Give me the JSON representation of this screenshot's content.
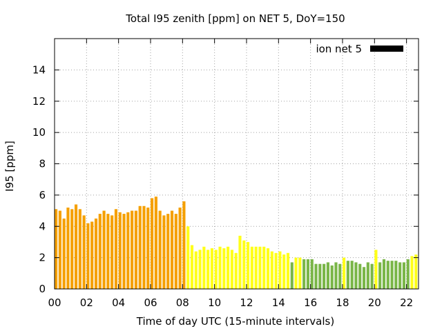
{
  "chart_data": {
    "type": "bar",
    "title": "Total I95 zenith [ppm] on NET 5, DoY=150",
    "xlabel": "Time of day UTC (15-minute intervals)",
    "ylabel": "I95 [ppm]",
    "xlim": [
      0,
      22.75
    ],
    "ylim": [
      0,
      16
    ],
    "grid": true,
    "x_ticks": [
      "00",
      "02",
      "04",
      "06",
      "08",
      "10",
      "12",
      "14",
      "16",
      "18",
      "20",
      "22"
    ],
    "y_ticks": [
      "0",
      "2",
      "4",
      "6",
      "8",
      "10",
      "12",
      "14"
    ],
    "legend": {
      "label": "ion net 5",
      "position": "top-right",
      "color": "#000000"
    },
    "colors": {
      "orange": "#f5a000",
      "yellow": "#ffff1a",
      "green": "#7ab648"
    },
    "bars": [
      {
        "x": 0.0,
        "value": 5.1,
        "color": "orange"
      },
      {
        "x": 0.25,
        "value": 5.0,
        "color": "orange"
      },
      {
        "x": 0.5,
        "value": 4.5,
        "color": "orange"
      },
      {
        "x": 0.75,
        "value": 5.2,
        "color": "orange"
      },
      {
        "x": 1.0,
        "value": 5.1,
        "color": "orange"
      },
      {
        "x": 1.25,
        "value": 5.4,
        "color": "orange"
      },
      {
        "x": 1.5,
        "value": 5.1,
        "color": "orange"
      },
      {
        "x": 1.75,
        "value": 4.7,
        "color": "orange"
      },
      {
        "x": 2.0,
        "value": 4.2,
        "color": "orange"
      },
      {
        "x": 2.25,
        "value": 4.3,
        "color": "orange"
      },
      {
        "x": 2.5,
        "value": 4.5,
        "color": "orange"
      },
      {
        "x": 2.75,
        "value": 4.8,
        "color": "orange"
      },
      {
        "x": 3.0,
        "value": 5.0,
        "color": "orange"
      },
      {
        "x": 3.25,
        "value": 4.8,
        "color": "orange"
      },
      {
        "x": 3.5,
        "value": 4.7,
        "color": "orange"
      },
      {
        "x": 3.75,
        "value": 5.1,
        "color": "orange"
      },
      {
        "x": 4.0,
        "value": 4.9,
        "color": "orange"
      },
      {
        "x": 4.25,
        "value": 4.8,
        "color": "orange"
      },
      {
        "x": 4.5,
        "value": 4.9,
        "color": "orange"
      },
      {
        "x": 4.75,
        "value": 5.0,
        "color": "orange"
      },
      {
        "x": 5.0,
        "value": 5.0,
        "color": "orange"
      },
      {
        "x": 5.25,
        "value": 5.3,
        "color": "orange"
      },
      {
        "x": 5.5,
        "value": 5.3,
        "color": "orange"
      },
      {
        "x": 5.75,
        "value": 5.2,
        "color": "orange"
      },
      {
        "x": 6.0,
        "value": 5.8,
        "color": "orange"
      },
      {
        "x": 6.25,
        "value": 5.9,
        "color": "orange"
      },
      {
        "x": 6.5,
        "value": 5.0,
        "color": "orange"
      },
      {
        "x": 6.75,
        "value": 4.7,
        "color": "orange"
      },
      {
        "x": 7.0,
        "value": 4.8,
        "color": "orange"
      },
      {
        "x": 7.25,
        "value": 5.0,
        "color": "orange"
      },
      {
        "x": 7.5,
        "value": 4.8,
        "color": "orange"
      },
      {
        "x": 7.75,
        "value": 5.2,
        "color": "orange"
      },
      {
        "x": 8.0,
        "value": 5.6,
        "color": "orange"
      },
      {
        "x": 8.25,
        "value": 4.0,
        "color": "yellow"
      },
      {
        "x": 8.5,
        "value": 2.8,
        "color": "yellow"
      },
      {
        "x": 8.75,
        "value": 2.4,
        "color": "yellow"
      },
      {
        "x": 9.0,
        "value": 2.5,
        "color": "yellow"
      },
      {
        "x": 9.25,
        "value": 2.7,
        "color": "yellow"
      },
      {
        "x": 9.5,
        "value": 2.5,
        "color": "yellow"
      },
      {
        "x": 9.75,
        "value": 2.6,
        "color": "yellow"
      },
      {
        "x": 10.0,
        "value": 2.5,
        "color": "yellow"
      },
      {
        "x": 10.25,
        "value": 2.7,
        "color": "yellow"
      },
      {
        "x": 10.5,
        "value": 2.6,
        "color": "yellow"
      },
      {
        "x": 10.75,
        "value": 2.7,
        "color": "yellow"
      },
      {
        "x": 11.0,
        "value": 2.5,
        "color": "yellow"
      },
      {
        "x": 11.25,
        "value": 2.3,
        "color": "yellow"
      },
      {
        "x": 11.5,
        "value": 3.4,
        "color": "yellow"
      },
      {
        "x": 11.75,
        "value": 3.1,
        "color": "yellow"
      },
      {
        "x": 12.0,
        "value": 3.0,
        "color": "yellow"
      },
      {
        "x": 12.25,
        "value": 2.7,
        "color": "yellow"
      },
      {
        "x": 12.5,
        "value": 2.7,
        "color": "yellow"
      },
      {
        "x": 12.75,
        "value": 2.7,
        "color": "yellow"
      },
      {
        "x": 13.0,
        "value": 2.7,
        "color": "yellow"
      },
      {
        "x": 13.25,
        "value": 2.6,
        "color": "yellow"
      },
      {
        "x": 13.5,
        "value": 2.4,
        "color": "yellow"
      },
      {
        "x": 13.75,
        "value": 2.3,
        "color": "yellow"
      },
      {
        "x": 14.0,
        "value": 2.4,
        "color": "yellow"
      },
      {
        "x": 14.25,
        "value": 2.2,
        "color": "yellow"
      },
      {
        "x": 14.5,
        "value": 2.3,
        "color": "yellow"
      },
      {
        "x": 14.75,
        "value": 1.7,
        "color": "green"
      },
      {
        "x": 15.0,
        "value": 2.0,
        "color": "yellow"
      },
      {
        "x": 15.25,
        "value": 2.0,
        "color": "yellow"
      },
      {
        "x": 15.5,
        "value": 1.9,
        "color": "green"
      },
      {
        "x": 15.75,
        "value": 1.9,
        "color": "green"
      },
      {
        "x": 16.0,
        "value": 1.9,
        "color": "green"
      },
      {
        "x": 16.25,
        "value": 1.6,
        "color": "green"
      },
      {
        "x": 16.5,
        "value": 1.6,
        "color": "green"
      },
      {
        "x": 16.75,
        "value": 1.6,
        "color": "green"
      },
      {
        "x": 17.0,
        "value": 1.7,
        "color": "green"
      },
      {
        "x": 17.25,
        "value": 1.5,
        "color": "green"
      },
      {
        "x": 17.5,
        "value": 1.7,
        "color": "green"
      },
      {
        "x": 17.75,
        "value": 1.6,
        "color": "green"
      },
      {
        "x": 18.0,
        "value": 2.0,
        "color": "yellow"
      },
      {
        "x": 18.25,
        "value": 1.8,
        "color": "green"
      },
      {
        "x": 18.5,
        "value": 1.8,
        "color": "green"
      },
      {
        "x": 18.75,
        "value": 1.7,
        "color": "green"
      },
      {
        "x": 19.0,
        "value": 1.6,
        "color": "green"
      },
      {
        "x": 19.25,
        "value": 1.4,
        "color": "green"
      },
      {
        "x": 19.5,
        "value": 1.7,
        "color": "green"
      },
      {
        "x": 19.75,
        "value": 1.6,
        "color": "green"
      },
      {
        "x": 20.0,
        "value": 2.5,
        "color": "yellow"
      },
      {
        "x": 20.25,
        "value": 1.7,
        "color": "green"
      },
      {
        "x": 20.5,
        "value": 1.9,
        "color": "green"
      },
      {
        "x": 20.75,
        "value": 1.8,
        "color": "green"
      },
      {
        "x": 21.0,
        "value": 1.8,
        "color": "green"
      },
      {
        "x": 21.25,
        "value": 1.8,
        "color": "green"
      },
      {
        "x": 21.5,
        "value": 1.7,
        "color": "green"
      },
      {
        "x": 21.75,
        "value": 1.7,
        "color": "green"
      },
      {
        "x": 22.0,
        "value": 1.9,
        "color": "green"
      },
      {
        "x": 22.25,
        "value": 2.1,
        "color": "yellow"
      },
      {
        "x": 22.5,
        "value": 2.2,
        "color": "yellow"
      }
    ]
  }
}
